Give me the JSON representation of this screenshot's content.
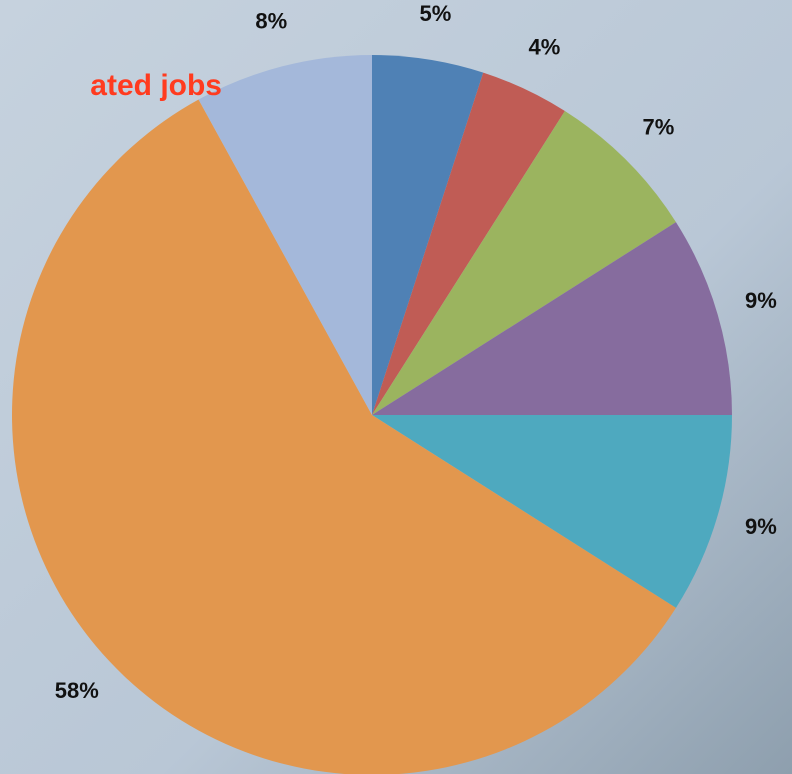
{
  "chart_data": {
    "type": "pie",
    "title": "ated jobs",
    "values": [
      5,
      4,
      7,
      9,
      9,
      58,
      8
    ],
    "value_labels": [
      "5%",
      "4%",
      "7%",
      "9%",
      "9%",
      "58%",
      "8%"
    ],
    "colors": [
      "#4f81b5",
      "#c05c55",
      "#9bb45f",
      "#866c9e",
      "#4ea9bf",
      "#e2974e",
      "#a4b8da"
    ]
  }
}
